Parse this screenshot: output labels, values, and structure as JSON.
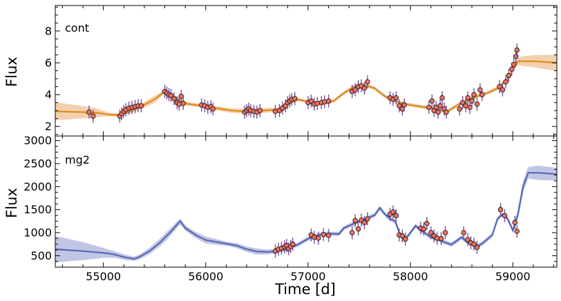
{
  "chart_data": [
    {
      "type": "scatter",
      "panel_label": "cont",
      "ylabel": "Flux",
      "xlim": [
        54530,
        59430
      ],
      "ylim": [
        1.4,
        9.6
      ],
      "yticks": [
        2,
        4,
        6,
        8
      ],
      "x_ticks": [
        55000,
        56000,
        57000,
        58000,
        59000
      ],
      "colors": {
        "model": "#e08a1a",
        "band": "#f2c9a1",
        "point_fill": "#f07060",
        "point_edge": "#1a1a1a",
        "errorbar": "#7a4fa0"
      },
      "model_curve": [
        [
          54530,
          2.95
        ],
        [
          54800,
          2.9
        ],
        [
          54950,
          2.85
        ],
        [
          55050,
          2.75
        ],
        [
          55150,
          2.72
        ],
        [
          55250,
          2.9
        ],
        [
          55350,
          3.2
        ],
        [
          55500,
          3.7
        ],
        [
          55600,
          4.2
        ],
        [
          55700,
          3.8
        ],
        [
          55800,
          3.45
        ],
        [
          55900,
          3.35
        ],
        [
          56000,
          3.3
        ],
        [
          56100,
          3.15
        ],
        [
          56250,
          3.0
        ],
        [
          56400,
          2.95
        ],
        [
          56550,
          3.0
        ],
        [
          56700,
          3.05
        ],
        [
          56800,
          3.4
        ],
        [
          56900,
          3.7
        ],
        [
          57000,
          3.55
        ],
        [
          57150,
          3.45
        ],
        [
          57250,
          3.6
        ],
        [
          57350,
          4.1
        ],
        [
          57450,
          4.5
        ],
        [
          57550,
          4.6
        ],
        [
          57650,
          4.4
        ],
        [
          57750,
          3.9
        ],
        [
          57850,
          3.6
        ],
        [
          57950,
          3.4
        ],
        [
          58050,
          3.3
        ],
        [
          58150,
          3.2
        ],
        [
          58250,
          3.1
        ],
        [
          58350,
          2.9
        ],
        [
          58450,
          3.3
        ],
        [
          58550,
          3.6
        ],
        [
          58650,
          3.9
        ],
        [
          58750,
          4.1
        ],
        [
          58850,
          4.4
        ],
        [
          58950,
          5.0
        ],
        [
          59050,
          6.1
        ],
        [
          59200,
          6.1
        ],
        [
          59430,
          6.0
        ]
      ],
      "band_halfwidth": [
        [
          54530,
          0.55
        ],
        [
          54900,
          0.3
        ],
        [
          55050,
          0.1
        ],
        [
          55200,
          0.08
        ],
        [
          55500,
          0.2
        ],
        [
          55600,
          0.1
        ],
        [
          55900,
          0.1
        ],
        [
          56500,
          0.15
        ],
        [
          56800,
          0.08
        ],
        [
          58500,
          0.1
        ],
        [
          59000,
          0.1
        ],
        [
          59100,
          0.3
        ],
        [
          59430,
          0.5
        ]
      ],
      "points": [
        [
          54860,
          2.9
        ],
        [
          54900,
          2.65
        ],
        [
          55160,
          2.65
        ],
        [
          55180,
          2.8
        ],
        [
          55200,
          2.95
        ],
        [
          55220,
          3.05
        ],
        [
          55250,
          3.15
        ],
        [
          55280,
          3.2
        ],
        [
          55310,
          3.25
        ],
        [
          55340,
          3.3
        ],
        [
          55370,
          3.3
        ],
        [
          55600,
          4.2
        ],
        [
          55620,
          4.1
        ],
        [
          55640,
          4.0
        ],
        [
          55660,
          3.95
        ],
        [
          55690,
          3.75
        ],
        [
          55720,
          3.5
        ],
        [
          55740,
          3.4
        ],
        [
          55760,
          3.9
        ],
        [
          55780,
          3.45
        ],
        [
          55960,
          3.35
        ],
        [
          55990,
          3.3
        ],
        [
          56020,
          3.2
        ],
        [
          56050,
          3.25
        ],
        [
          56070,
          3.1
        ],
        [
          56380,
          2.9
        ],
        [
          56400,
          3.0
        ],
        [
          56420,
          3.1
        ],
        [
          56440,
          3.0
        ],
        [
          56470,
          2.95
        ],
        [
          56500,
          2.9
        ],
        [
          56530,
          3.0
        ],
        [
          56680,
          2.95
        ],
        [
          56720,
          3.0
        ],
        [
          56750,
          3.15
        ],
        [
          56780,
          3.3
        ],
        [
          56800,
          3.5
        ],
        [
          56820,
          3.6
        ],
        [
          56840,
          3.7
        ],
        [
          56870,
          3.75
        ],
        [
          57000,
          3.5
        ],
        [
          57030,
          3.6
        ],
        [
          57060,
          3.4
        ],
        [
          57090,
          3.45
        ],
        [
          57130,
          3.5
        ],
        [
          57160,
          3.55
        ],
        [
          57200,
          3.6
        ],
        [
          57430,
          4.2
        ],
        [
          57460,
          4.3
        ],
        [
          57490,
          4.5
        ],
        [
          57520,
          4.55
        ],
        [
          57550,
          4.4
        ],
        [
          57580,
          4.8
        ],
        [
          57800,
          3.8
        ],
        [
          57830,
          3.7
        ],
        [
          57860,
          3.8
        ],
        [
          57890,
          3.3
        ],
        [
          57920,
          3.1
        ],
        [
          57940,
          3.35
        ],
        [
          58180,
          3.2
        ],
        [
          58210,
          3.6
        ],
        [
          58230,
          3.0
        ],
        [
          58250,
          3.2
        ],
        [
          58270,
          2.9
        ],
        [
          58290,
          3.3
        ],
        [
          58310,
          3.8
        ],
        [
          58330,
          3.1
        ],
        [
          58350,
          2.9
        ],
        [
          58480,
          3.1
        ],
        [
          58510,
          3.5
        ],
        [
          58540,
          3.3
        ],
        [
          58560,
          3.8
        ],
        [
          58580,
          3.2
        ],
        [
          58600,
          3.6
        ],
        [
          58620,
          4.0
        ],
        [
          58650,
          3.4
        ],
        [
          58680,
          4.3
        ],
        [
          58700,
          4.0
        ],
        [
          58870,
          4.5
        ],
        [
          58900,
          4.3
        ],
        [
          58930,
          4.8
        ],
        [
          58960,
          5.2
        ],
        [
          58990,
          5.6
        ],
        [
          59010,
          5.9
        ],
        [
          59030,
          6.4
        ],
        [
          59040,
          6.8
        ]
      ]
    },
    {
      "type": "scatter",
      "panel_label": "mg2",
      "xlabel": "Time [d]",
      "ylabel": "Flux",
      "xlim": [
        54530,
        59430
      ],
      "ylim": [
        250,
        3100
      ],
      "yticks": [
        500,
        1000,
        1500,
        2000,
        2500,
        3000
      ],
      "x_ticks": [
        55000,
        56000,
        57000,
        58000,
        59000
      ],
      "colors": {
        "model": "#5566b3",
        "band": "#b7bde0",
        "point_fill": "#f07060",
        "point_edge": "#1a1a1a",
        "errorbar": "#7a4fa0"
      },
      "model_curve": [
        [
          54530,
          640
        ],
        [
          54800,
          600
        ],
        [
          55000,
          560
        ],
        [
          55100,
          530
        ],
        [
          55200,
          470
        ],
        [
          55300,
          430
        ],
        [
          55350,
          470
        ],
        [
          55450,
          600
        ],
        [
          55550,
          780
        ],
        [
          55650,
          1000
        ],
        [
          55750,
          1250
        ],
        [
          55800,
          1100
        ],
        [
          55900,
          950
        ],
        [
          56000,
          840
        ],
        [
          56100,
          800
        ],
        [
          56200,
          760
        ],
        [
          56300,
          720
        ],
        [
          56400,
          640
        ],
        [
          56500,
          590
        ],
        [
          56600,
          580
        ],
        [
          56700,
          600
        ],
        [
          56800,
          650
        ],
        [
          56900,
          740
        ],
        [
          57000,
          870
        ],
        [
          57100,
          950
        ],
        [
          57200,
          980
        ],
        [
          57300,
          970
        ],
        [
          57350,
          1100
        ],
        [
          57450,
          1200
        ],
        [
          57550,
          1290
        ],
        [
          57650,
          1380
        ],
        [
          57700,
          1540
        ],
        [
          57750,
          1400
        ],
        [
          57800,
          1300
        ],
        [
          57850,
          1250
        ],
        [
          57900,
          950
        ],
        [
          57950,
          860
        ],
        [
          58000,
          1000
        ],
        [
          58050,
          1150
        ],
        [
          58100,
          1050
        ],
        [
          58150,
          980
        ],
        [
          58200,
          900
        ],
        [
          58250,
          870
        ],
        [
          58300,
          820
        ],
        [
          58350,
          780
        ],
        [
          58400,
          740
        ],
        [
          58450,
          820
        ],
        [
          58500,
          900
        ],
        [
          58550,
          800
        ],
        [
          58600,
          760
        ],
        [
          58650,
          700
        ],
        [
          58700,
          760
        ],
        [
          58800,
          950
        ],
        [
          58850,
          1300
        ],
        [
          58900,
          1400
        ],
        [
          58950,
          1300
        ],
        [
          59000,
          1050
        ],
        [
          59050,
          1400
        ],
        [
          59100,
          2000
        ],
        [
          59150,
          2300
        ],
        [
          59250,
          2300
        ],
        [
          59430,
          2270
        ]
      ],
      "band_halfwidth": [
        [
          54530,
          280
        ],
        [
          54800,
          190
        ],
        [
          55050,
          80
        ],
        [
          55150,
          60
        ],
        [
          55300,
          40
        ],
        [
          55600,
          80
        ],
        [
          55800,
          50
        ],
        [
          56000,
          70
        ],
        [
          56200,
          40
        ],
        [
          56500,
          60
        ],
        [
          56700,
          40
        ],
        [
          59000,
          40
        ],
        [
          59100,
          100
        ],
        [
          59250,
          150
        ],
        [
          59430,
          130
        ]
      ],
      "points": [
        [
          56680,
          600
        ],
        [
          56710,
          640
        ],
        [
          56740,
          660
        ],
        [
          56770,
          690
        ],
        [
          56790,
          720
        ],
        [
          56810,
          650
        ],
        [
          56830,
          700
        ],
        [
          56850,
          750
        ],
        [
          57030,
          950
        ],
        [
          57060,
          900
        ],
        [
          57100,
          880
        ],
        [
          57150,
          960
        ],
        [
          57200,
          940
        ],
        [
          57430,
          1000
        ],
        [
          57460,
          1260
        ],
        [
          57490,
          1080
        ],
        [
          57520,
          1270
        ],
        [
          57550,
          1220
        ],
        [
          57580,
          1300
        ],
        [
          57800,
          1400
        ],
        [
          57830,
          1450
        ],
        [
          57860,
          1370
        ],
        [
          57890,
          950
        ],
        [
          57920,
          930
        ],
        [
          57950,
          860
        ],
        [
          58100,
          1100
        ],
        [
          58130,
          1080
        ],
        [
          58160,
          1200
        ],
        [
          58200,
          1000
        ],
        [
          58230,
          930
        ],
        [
          58260,
          880
        ],
        [
          58300,
          870
        ],
        [
          58340,
          1000
        ],
        [
          58520,
          1000
        ],
        [
          58560,
          850
        ],
        [
          58590,
          780
        ],
        [
          58620,
          750
        ],
        [
          58650,
          680
        ],
        [
          58880,
          1500
        ],
        [
          58920,
          1370
        ],
        [
          59020,
          1220
        ],
        [
          59040,
          1030
        ]
      ]
    }
  ]
}
